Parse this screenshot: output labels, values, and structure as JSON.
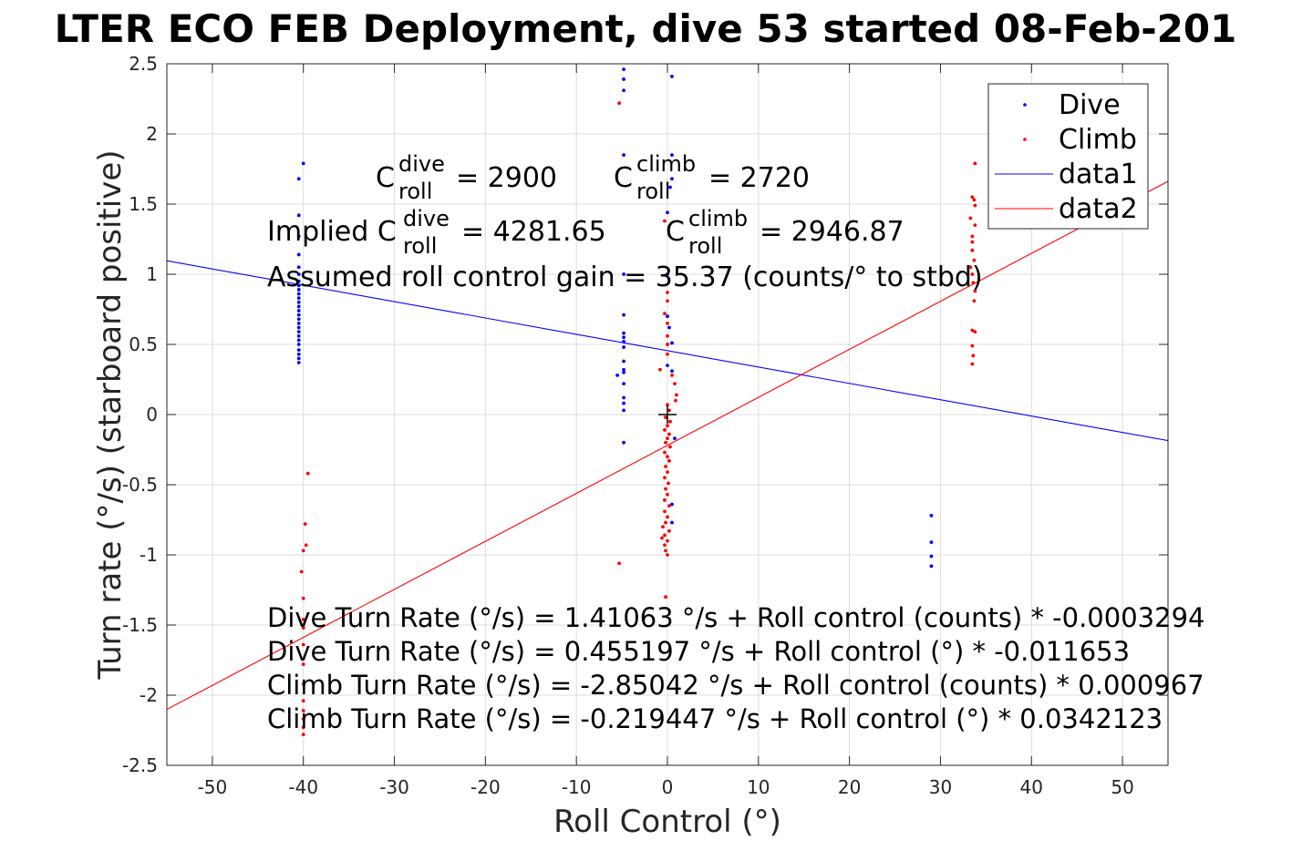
{
  "chart_data": {
    "type": "scatter",
    "title": "LTER ECO FEB Deployment, dive 53 started 08-Feb-201",
    "xlabel": "Roll Control (°)",
    "ylabel": "Turn rate (°/s) (starboard positive)",
    "xlim": [
      -55,
      55
    ],
    "ylim": [
      -2.5,
      2.5
    ],
    "x_ticks": [
      -50,
      -40,
      -30,
      -20,
      -10,
      0,
      10,
      20,
      30,
      40,
      50
    ],
    "x_tick_labels": [
      "-50",
      "-40",
      "-30",
      "-20",
      "-10",
      "0",
      "10",
      "20",
      "30",
      "40",
      "50"
    ],
    "y_ticks": [
      2.5,
      2,
      1.5,
      1,
      0.5,
      0,
      -0.5,
      -1,
      -1.5,
      -2,
      -2.5
    ],
    "y_tick_labels": [
      "2.5",
      "2",
      "1.5",
      "1",
      "0.5",
      "0",
      "-0.5",
      "-1",
      "-1.5",
      "-2",
      "-2.5"
    ],
    "grid": true,
    "legend_position": "top-right",
    "legend": [
      "Dive",
      "Climb",
      "data1",
      "data2"
    ],
    "series": [
      {
        "name": "Dive",
        "kind": "scatter",
        "color": "#0000ff",
        "points": [
          [
            -40.5,
            1.68
          ],
          [
            -40,
            1.79
          ],
          [
            -40.5,
            1.42
          ],
          [
            -40.5,
            1.27
          ],
          [
            -40.5,
            1.14
          ],
          [
            -40.5,
            1.05
          ],
          [
            -40.5,
            1.0
          ],
          [
            -40.5,
            0.95
          ],
          [
            -40.5,
            0.92
          ],
          [
            -40.5,
            0.89
          ],
          [
            -40.5,
            0.86
          ],
          [
            -40.5,
            0.83
          ],
          [
            -40.5,
            0.8
          ],
          [
            -40.5,
            0.77
          ],
          [
            -40.5,
            0.74
          ],
          [
            -40.5,
            0.71
          ],
          [
            -40.5,
            0.68
          ],
          [
            -40.5,
            0.65
          ],
          [
            -40.5,
            0.62
          ],
          [
            -40.5,
            0.59
          ],
          [
            -40.5,
            0.56
          ],
          [
            -40.5,
            0.53
          ],
          [
            -40.5,
            0.5
          ],
          [
            -40.5,
            0.46
          ],
          [
            -40.5,
            0.43
          ],
          [
            -40.5,
            0.4
          ],
          [
            -40.5,
            0.37
          ],
          [
            -4.8,
            2.46
          ],
          [
            -4.8,
            2.39
          ],
          [
            -4.8,
            2.31
          ],
          [
            -4.8,
            1.85
          ],
          [
            -4.8,
            1.0
          ],
          [
            -4.8,
            0.71
          ],
          [
            -4.8,
            0.58
          ],
          [
            -4.8,
            0.55
          ],
          [
            -4.8,
            0.52
          ],
          [
            -4.8,
            0.48
          ],
          [
            -4.8,
            0.38
          ],
          [
            -4.8,
            0.32
          ],
          [
            -4.8,
            0.3
          ],
          [
            -5.5,
            0.28
          ],
          [
            -4.8,
            0.22
          ],
          [
            -4.8,
            0.12
          ],
          [
            -4.8,
            0.08
          ],
          [
            -4.8,
            0.03
          ],
          [
            -4.8,
            -0.2
          ],
          [
            0.5,
            2.41
          ],
          [
            0.5,
            1.85
          ],
          [
            0.5,
            1.68
          ],
          [
            0.3,
            1.62
          ],
          [
            0,
            1.44
          ],
          [
            0,
            1.0
          ],
          [
            0,
            0.7
          ],
          [
            0.2,
            0.62
          ],
          [
            0.5,
            0.51
          ],
          [
            0,
            0.5
          ],
          [
            0,
            0.35
          ],
          [
            0.5,
            0.31
          ],
          [
            0.8,
            -0.17
          ],
          [
            0.5,
            -0.64
          ],
          [
            0.5,
            -0.77
          ],
          [
            29,
            -0.72
          ],
          [
            29,
            -0.91
          ],
          [
            29,
            -1.01
          ],
          [
            29,
            -1.08
          ]
        ]
      },
      {
        "name": "Climb",
        "kind": "scatter",
        "color": "#ff0000",
        "points": [
          [
            -39.5,
            -0.42
          ],
          [
            -39.8,
            -0.78
          ],
          [
            -39.7,
            -0.93
          ],
          [
            -40,
            -0.97
          ],
          [
            -40.2,
            -1.12
          ],
          [
            -40,
            -1.31
          ],
          [
            -40,
            -1.46
          ],
          [
            -40,
            -1.52
          ],
          [
            -40,
            -1.64
          ],
          [
            -40,
            -1.78
          ],
          [
            -40,
            -1.92
          ],
          [
            -40,
            -2.04
          ],
          [
            -40,
            -2.11
          ],
          [
            -40,
            -2.17
          ],
          [
            -40,
            -2.23
          ],
          [
            -40,
            -2.28
          ],
          [
            -5.3,
            2.22
          ],
          [
            -5.3,
            -1.06
          ],
          [
            -0.3,
            1.38
          ],
          [
            0,
            0.87
          ],
          [
            0,
            0.81
          ],
          [
            -0.3,
            0.72
          ],
          [
            0,
            0.65
          ],
          [
            0,
            0.56
          ],
          [
            0,
            0.5
          ],
          [
            0,
            0.43
          ],
          [
            -0.8,
            0.32
          ],
          [
            0.5,
            0.28
          ],
          [
            0.8,
            0.22
          ],
          [
            1,
            0.14
          ],
          [
            0.9,
            0.1
          ],
          [
            0,
            0.07
          ],
          [
            0.2,
            0.03
          ],
          [
            -0.2,
            -0.02
          ],
          [
            0.3,
            -0.05
          ],
          [
            0,
            -0.08
          ],
          [
            -0.3,
            -0.11
          ],
          [
            0.2,
            -0.14
          ],
          [
            0,
            -0.17
          ],
          [
            -0.2,
            -0.2
          ],
          [
            0.3,
            -0.23
          ],
          [
            -0.3,
            -0.27
          ],
          [
            0,
            -0.3
          ],
          [
            0.2,
            -0.33
          ],
          [
            -0.2,
            -0.37
          ],
          [
            0,
            -0.41
          ],
          [
            -0.3,
            -0.45
          ],
          [
            0.1,
            -0.49
          ],
          [
            -0.2,
            -0.53
          ],
          [
            0,
            -0.57
          ],
          [
            -0.3,
            -0.61
          ],
          [
            0.2,
            -0.65
          ],
          [
            -0.3,
            -0.69
          ],
          [
            0,
            -0.73
          ],
          [
            -0.2,
            -0.77
          ],
          [
            -0.5,
            -0.8
          ],
          [
            0.2,
            -0.83
          ],
          [
            -0.3,
            -0.86
          ],
          [
            -0.6,
            -0.88
          ],
          [
            0,
            -0.9
          ],
          [
            -0.3,
            -0.93
          ],
          [
            -0.2,
            -0.97
          ],
          [
            0,
            -1.0
          ],
          [
            -0.2,
            -1.3
          ],
          [
            33.8,
            1.79
          ],
          [
            33.5,
            1.55
          ],
          [
            33.7,
            1.53
          ],
          [
            33.8,
            1.49
          ],
          [
            33.3,
            1.4
          ],
          [
            33.8,
            1.35
          ],
          [
            33.5,
            1.27
          ],
          [
            33.5,
            1.23
          ],
          [
            33.5,
            1.17
          ],
          [
            33.7,
            1.1
          ],
          [
            33.3,
            1.05
          ],
          [
            33.5,
            1.0
          ],
          [
            33.6,
            0.94
          ],
          [
            33.8,
            0.88
          ],
          [
            33.7,
            0.81
          ],
          [
            33.5,
            0.6
          ],
          [
            33.8,
            0.59
          ],
          [
            33.5,
            0.49
          ],
          [
            33.6,
            0.42
          ],
          [
            33.5,
            0.36
          ]
        ]
      },
      {
        "name": "data1",
        "kind": "line",
        "color": "#0000ff",
        "intercept": 0.455197,
        "slope": -0.011653
      },
      {
        "name": "data2",
        "kind": "line",
        "color": "#ff0000",
        "intercept": -0.219447,
        "slope": 0.0342123
      }
    ],
    "center_marker": [
      0,
      0
    ],
    "annotations": {
      "c_roll_dive": {
        "base": "C",
        "sup": "dive",
        "sub": "roll",
        "value": "= 2900"
      },
      "c_roll_climb": {
        "base": "C",
        "sup": "climb",
        "sub": "roll",
        "value": "= 2720"
      },
      "implied_dive": {
        "base": "Implied C",
        "sup": "dive",
        "sub": "roll",
        "value": "= 4281.65"
      },
      "implied_climb": {
        "base": "C",
        "sup": "climb",
        "sub": "roll",
        "value": "= 2946.87"
      },
      "gain": "Assumed roll control gain = 35.37 (counts/° to stbd)",
      "eq1": "Dive Turn Rate (°/s) = 1.41063 °/s + Roll control (counts) * -0.0003294",
      "eq2": "Dive Turn Rate (°/s) = 0.455197 °/s + Roll control (°) * -0.011653",
      "eq3": "Climb Turn Rate (°/s) = -2.85042 °/s + Roll control (counts) * 0.000967",
      "eq4": "Climb Turn Rate (°/s) = -0.219447 °/s + Roll control (°) * 0.0342123"
    }
  }
}
